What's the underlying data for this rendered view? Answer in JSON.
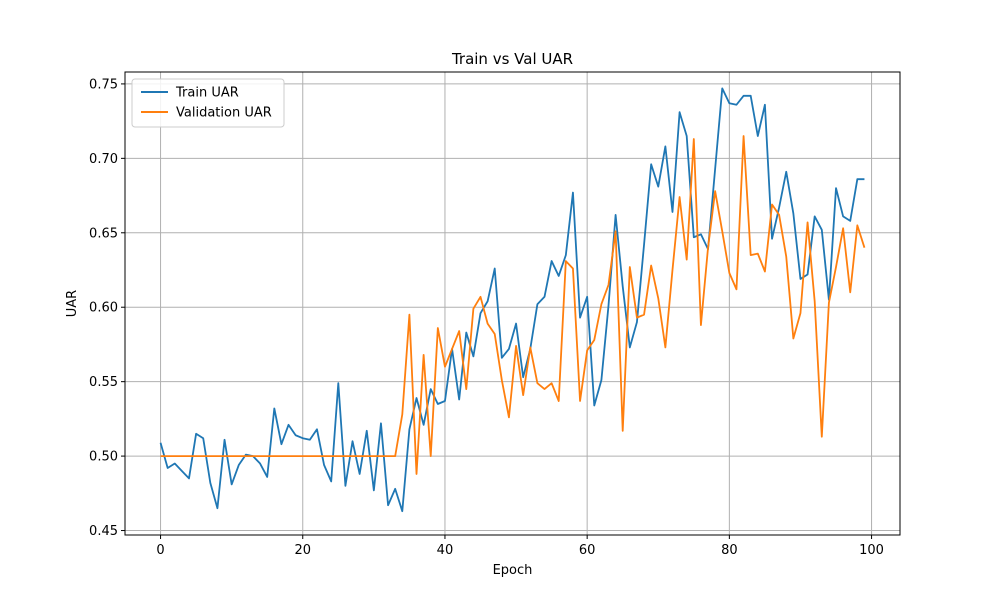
{
  "chart_data": {
    "type": "line",
    "title": "Train vs Val UAR",
    "xlabel": "Epoch",
    "ylabel": "UAR",
    "xlim": [
      -5,
      104
    ],
    "ylim": [
      0.447,
      0.758
    ],
    "xticks": [
      0,
      20,
      40,
      60,
      80,
      100
    ],
    "yticks": [
      0.45,
      0.5,
      0.55,
      0.6,
      0.65,
      0.7,
      0.75
    ],
    "xtick_labels": [
      "0",
      "20",
      "40",
      "60",
      "80",
      "100"
    ],
    "ytick_labels": [
      "0.45",
      "0.50",
      "0.55",
      "0.60",
      "0.65",
      "0.70",
      "0.75"
    ],
    "grid": true,
    "legend_position": "top-left",
    "x": [
      0,
      1,
      2,
      3,
      4,
      5,
      6,
      7,
      8,
      9,
      10,
      11,
      12,
      13,
      14,
      15,
      16,
      17,
      18,
      19,
      20,
      21,
      22,
      23,
      24,
      25,
      26,
      27,
      28,
      29,
      30,
      31,
      32,
      33,
      34,
      35,
      36,
      37,
      38,
      39,
      40,
      41,
      42,
      43,
      44,
      45,
      46,
      47,
      48,
      49,
      50,
      51,
      52,
      53,
      54,
      55,
      56,
      57,
      58,
      59,
      60,
      61,
      62,
      63,
      64,
      65,
      66,
      67,
      68,
      69,
      70,
      71,
      72,
      73,
      74,
      75,
      76,
      77,
      78,
      79,
      80,
      81,
      82,
      83,
      84,
      85,
      86,
      87,
      88,
      89,
      90,
      91,
      92,
      93,
      94,
      95,
      96,
      97,
      98,
      99
    ],
    "series": [
      {
        "name": "Train UAR",
        "color": "#1f77b4",
        "values": [
          0.509,
          0.492,
          0.495,
          0.49,
          0.485,
          0.515,
          0.512,
          0.482,
          0.465,
          0.511,
          0.481,
          0.494,
          0.501,
          0.5,
          0.495,
          0.486,
          0.532,
          0.508,
          0.521,
          0.514,
          0.512,
          0.511,
          0.518,
          0.494,
          0.483,
          0.549,
          0.48,
          0.51,
          0.488,
          0.517,
          0.477,
          0.522,
          0.467,
          0.478,
          0.463,
          0.518,
          0.539,
          0.521,
          0.545,
          0.535,
          0.537,
          0.572,
          0.538,
          0.583,
          0.567,
          0.596,
          0.604,
          0.626,
          0.566,
          0.572,
          0.589,
          0.553,
          0.572,
          0.602,
          0.607,
          0.631,
          0.621,
          0.635,
          0.677,
          0.593,
          0.607,
          0.534,
          0.551,
          0.601,
          0.662,
          0.614,
          0.573,
          0.59,
          0.642,
          0.696,
          0.681,
          0.708,
          0.664,
          0.731,
          0.715,
          0.647,
          0.649,
          0.639,
          0.693,
          0.747,
          0.737,
          0.736,
          0.742,
          0.742,
          0.715,
          0.736,
          0.646,
          0.667,
          0.691,
          0.663,
          0.619,
          0.622,
          0.661,
          0.652,
          0.605,
          0.68,
          0.661,
          0.658,
          0.686,
          0.686
        ]
      },
      {
        "name": "Validation UAR",
        "color": "#ff7f0e",
        "values": [
          0.5,
          0.5,
          0.5,
          0.5,
          0.5,
          0.5,
          0.5,
          0.5,
          0.5,
          0.5,
          0.5,
          0.5,
          0.5,
          0.5,
          0.5,
          0.5,
          0.5,
          0.5,
          0.5,
          0.5,
          0.5,
          0.5,
          0.5,
          0.5,
          0.5,
          0.5,
          0.5,
          0.5,
          0.5,
          0.5,
          0.5,
          0.5,
          0.5,
          0.5,
          0.528,
          0.595,
          0.488,
          0.568,
          0.5,
          0.586,
          0.56,
          0.572,
          0.584,
          0.545,
          0.599,
          0.607,
          0.589,
          0.582,
          0.551,
          0.526,
          0.574,
          0.541,
          0.573,
          0.549,
          0.545,
          0.549,
          0.537,
          0.631,
          0.626,
          0.537,
          0.571,
          0.578,
          0.602,
          0.615,
          0.651,
          0.517,
          0.627,
          0.593,
          0.595,
          0.628,
          0.606,
          0.573,
          0.625,
          0.674,
          0.632,
          0.713,
          0.588,
          0.64,
          0.678,
          0.651,
          0.623,
          0.612,
          0.715,
          0.635,
          0.636,
          0.624,
          0.669,
          0.662,
          0.634,
          0.579,
          0.596,
          0.657,
          0.604,
          0.513,
          0.603,
          0.627,
          0.653,
          0.61,
          0.655,
          0.64
        ]
      }
    ]
  }
}
